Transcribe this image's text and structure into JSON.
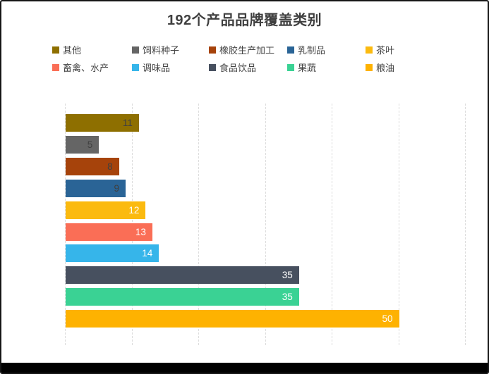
{
  "title": "192个产品品牌覆盖类别",
  "chart_data": {
    "type": "bar",
    "orientation": "horizontal",
    "title": "192个产品品牌覆盖类别",
    "categories": [
      "其他",
      "饲料种子",
      "橡胶生产加工",
      "乳制品",
      "茶叶",
      "畜禽、水产",
      "调味品",
      "食品饮品",
      "果蔬",
      "粮油"
    ],
    "values": [
      11,
      5,
      8,
      9,
      12,
      13,
      14,
      35,
      35,
      50
    ],
    "colors": [
      "#8E6F00",
      "#656565",
      "#A6430B",
      "#2A6496",
      "#FBBA0F",
      "#FA6E56",
      "#36B5EA",
      "#47505F",
      "#3AD294",
      "#FEB201"
    ],
    "value_label_colors": [
      "#404040",
      "#404040",
      "#404040",
      "#404040",
      "#FFFFFF",
      "#FFFFFF",
      "#FFFFFF",
      "#FFFFFF",
      "#FFFFFF",
      "#FFFFFF"
    ],
    "xlabel": "",
    "ylabel": "",
    "xlim": [
      0,
      60
    ],
    "grid_interval": 10,
    "grid": true,
    "grid_style": "dashed",
    "grid_color": "#DCDCDC",
    "axis_tick_labels_visible": false,
    "legend_position": "top",
    "legend_rows": 2,
    "title_color": "#3F3F3F",
    "background_color": "#FFFFFF",
    "frame_color": "#161616"
  }
}
